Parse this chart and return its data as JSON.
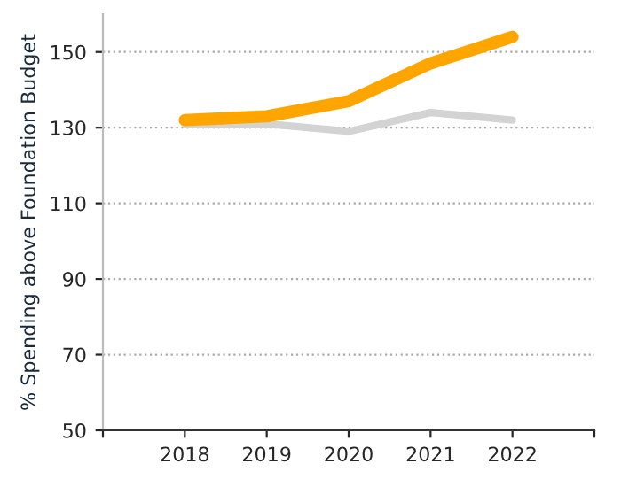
{
  "chart_data": {
    "type": "line",
    "ylabel": "% Spending above Foundation Budget",
    "x": [
      2018,
      2019,
      2020,
      2021,
      2022
    ],
    "series": [
      {
        "color": "#d3d3d3",
        "values": [
          131,
          131,
          129,
          134,
          132
        ]
      },
      {
        "color": "#ffa500",
        "values": [
          132,
          133,
          137,
          147,
          154
        ]
      }
    ],
    "xlim": [
      2017,
      2023
    ],
    "xticks": [
      {
        "value": 2017,
        "label": null
      },
      2018,
      2019,
      2020,
      2021,
      2022,
      {
        "value": 2023,
        "label": null
      }
    ],
    "ylim": [
      50,
      160
    ],
    "yticks": [
      50,
      70,
      90,
      110,
      130,
      150
    ],
    "grid": "y",
    "marker": "none",
    "line_style": "solid"
  }
}
